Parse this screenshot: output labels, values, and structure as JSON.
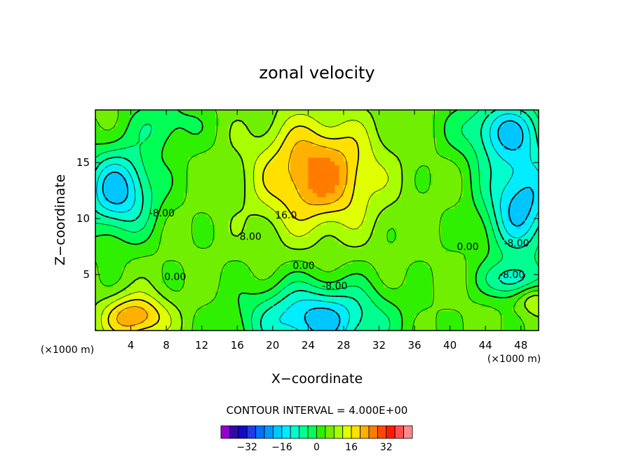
{
  "chart_data": {
    "type": "heatmap",
    "title": "zonal velocity",
    "xlabel": "X−coordinate",
    "ylabel": "Z−coordinate",
    "x_unit_left": "(×1000 m)",
    "x_unit_right": "(×1000 m)",
    "xlim": [
      0,
      50
    ],
    "ylim": [
      0,
      19.7
    ],
    "x_ticks": [
      4,
      8,
      12,
      16,
      20,
      24,
      28,
      32,
      36,
      40,
      44,
      48
    ],
    "y_ticks": [
      5,
      10,
      15
    ],
    "contour_interval_text": "CONTOUR INTERVAL = 4.000E+00",
    "contour_interval": 4,
    "contour_labels": [
      {
        "text": "16.0",
        "level": 16,
        "x": 21.5,
        "y": 10.0
      },
      {
        "text": "8.00",
        "level": 8,
        "x": 17.5,
        "y": 8.1
      },
      {
        "text": "0.00",
        "level": 0,
        "x": 23.5,
        "y": 5.5
      },
      {
        "text": "-8.00",
        "level": -8,
        "x": 27.0,
        "y": 3.7
      },
      {
        "text": "-8.00",
        "level": -8,
        "x": 7.5,
        "y": 10.2
      },
      {
        "text": "0.00",
        "level": 0,
        "x": 9.0,
        "y": 4.5
      },
      {
        "text": "0.00",
        "level": 0,
        "x": 42.0,
        "y": 7.2
      },
      {
        "text": "-8.00",
        "level": -8,
        "x": 47.5,
        "y": 7.5
      },
      {
        "text": "-8.00",
        "level": -8,
        "x": 47.0,
        "y": 4.7
      }
    ],
    "field_features": [
      {
        "kind": "max",
        "x": 25,
        "y": 14,
        "value": 26
      },
      {
        "kind": "max",
        "x": 4.5,
        "y": 1.2,
        "value": 24
      },
      {
        "kind": "min",
        "x": 2.5,
        "y": 12.5,
        "value": -18
      },
      {
        "kind": "min",
        "x": 24.5,
        "y": 1.3,
        "value": -18
      },
      {
        "kind": "min",
        "x": 47.5,
        "y": 11.5,
        "value": -18
      },
      {
        "kind": "min",
        "x": 46,
        "y": 17.5,
        "value": -14
      }
    ],
    "colorbar": {
      "tick_labels": [
        "−32",
        "−16",
        "0",
        "16",
        "32"
      ],
      "tick_values": [
        -32,
        -16,
        0,
        16,
        32
      ],
      "levels": [
        -40,
        -36,
        -32,
        -28,
        -24,
        -20,
        -16,
        -12,
        -8,
        -4,
        0,
        4,
        8,
        12,
        16,
        20,
        24,
        28,
        32,
        36,
        40
      ],
      "colors": [
        "#9400cc",
        "#2e0ba8",
        "#1208c6",
        "#1f3ce6",
        "#0070ff",
        "#0099ff",
        "#00c6ff",
        "#00ecff",
        "#00ffcc",
        "#00ff90",
        "#00ff55",
        "#2ef000",
        "#70f000",
        "#a8ff00",
        "#e0ff00",
        "#ffe000",
        "#ffb000",
        "#ff7c00",
        "#ff4a00",
        "#ff1a00",
        "#ff5050",
        "#ff8a8a"
      ]
    }
  }
}
